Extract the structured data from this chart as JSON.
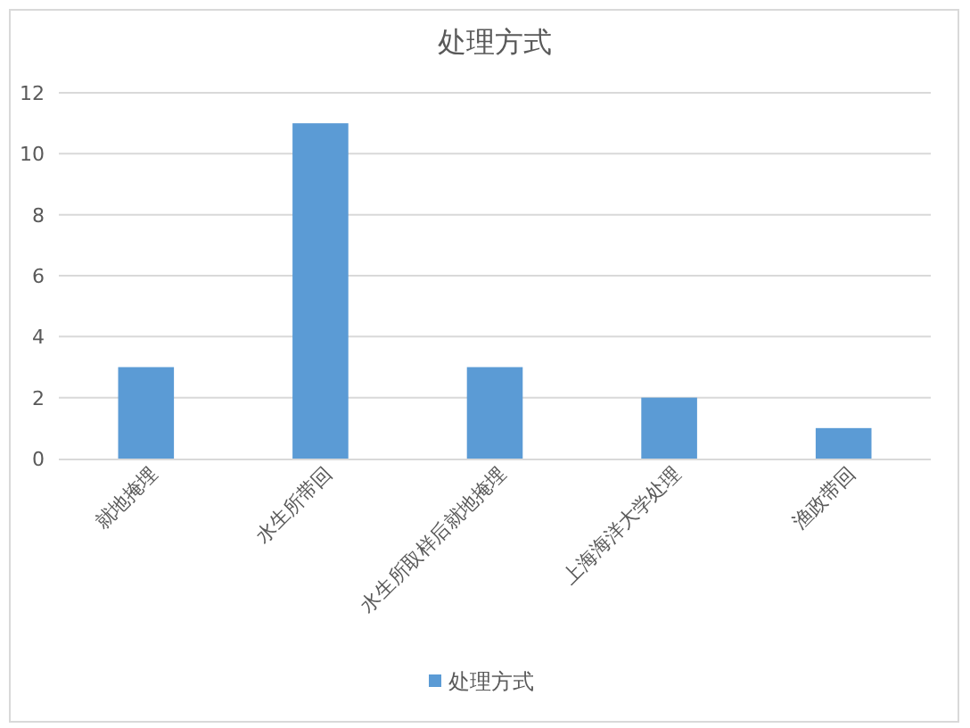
{
  "chart_data": {
    "type": "bar",
    "title": "处理方式",
    "categories": [
      "就地掩埋",
      "水生所带回",
      "水生所取样后就地掩埋",
      "上海海洋大学处理",
      "渔政带回"
    ],
    "series": [
      {
        "name": "处理方式",
        "color": "#5b9bd5",
        "values": [
          3,
          11,
          3,
          2,
          1
        ]
      }
    ],
    "ylim": [
      0,
      12
    ],
    "yticks": [
      0,
      2,
      4,
      6,
      8,
      10,
      12
    ],
    "grid": "y",
    "legend": "bottom"
  }
}
